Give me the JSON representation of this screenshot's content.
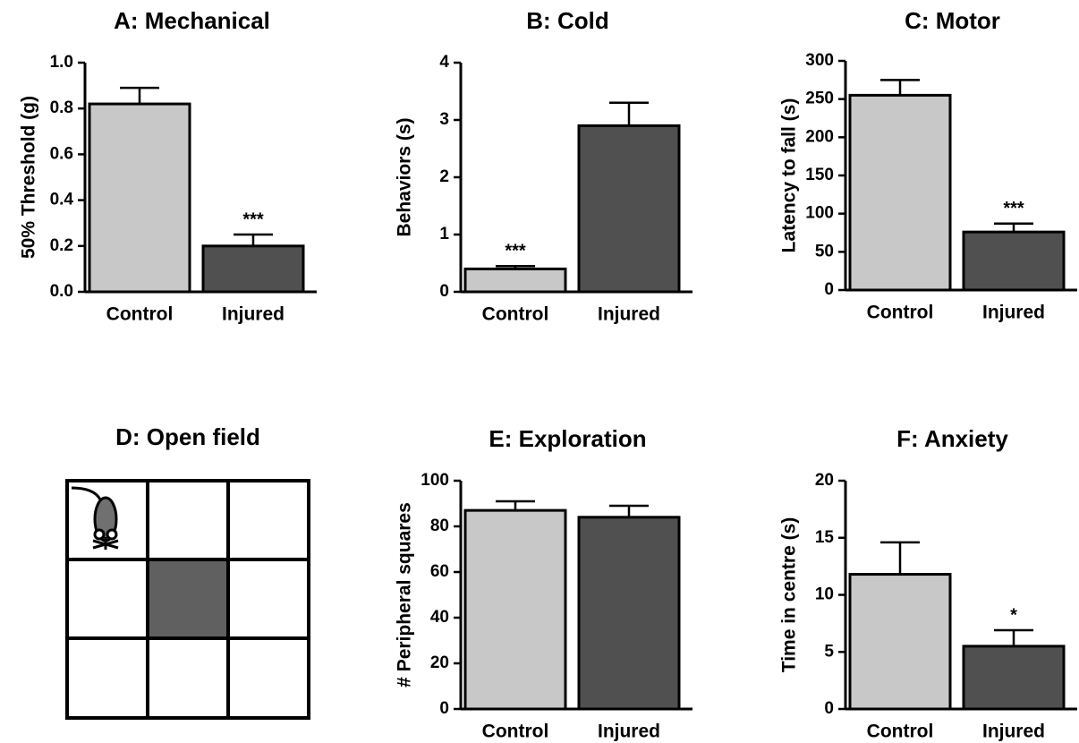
{
  "chart_data": [
    {
      "type": "bar",
      "title": "A: Mechanical",
      "y_label": "50% Threshold (g)",
      "categories": [
        "Control",
        "Injured"
      ],
      "values": [
        0.82,
        0.2
      ],
      "errors": [
        0.07,
        0.05
      ],
      "annotations": [
        null,
        "***"
      ],
      "colors": [
        "#c8c8c8",
        "#505050"
      ],
      "ylim": [
        0,
        1
      ],
      "yticks": [
        {
          "value": 0,
          "label": "0.0"
        },
        0.2,
        0.4,
        0.6,
        0.8,
        {
          "value": 1,
          "label": "1.0"
        }
      ]
    },
    {
      "type": "bar",
      "title": "B: Cold",
      "y_label": "Behaviors (s)",
      "categories": [
        "Control",
        "Injured"
      ],
      "values": [
        0.4,
        2.9
      ],
      "errors": [
        0.05,
        0.4
      ],
      "annotations": [
        "***",
        null
      ],
      "colors": [
        "#c8c8c8",
        "#505050"
      ],
      "ylim": [
        0,
        4
      ],
      "yticks": [
        0,
        1,
        2,
        3,
        4
      ]
    },
    {
      "type": "bar",
      "title": "C: Motor",
      "y_label": "Latency to fall (s)",
      "categories": [
        "Control",
        "Injured"
      ],
      "values": [
        255,
        76
      ],
      "errors": [
        20,
        11
      ],
      "annotations": [
        null,
        "***"
      ],
      "colors": [
        "#c8c8c8",
        "#505050"
      ],
      "ylim": [
        0,
        300
      ],
      "yticks": [
        0,
        50,
        100,
        150,
        200,
        250,
        300
      ]
    },
    {
      "type": "diagram",
      "title": "D: Open field"
    },
    {
      "type": "bar",
      "title": "E: Exploration",
      "y_label": "# Peripheral squares",
      "categories": [
        "Control",
        "Injured"
      ],
      "values": [
        87,
        84
      ],
      "errors": [
        4,
        5
      ],
      "annotations": [
        null,
        null
      ],
      "colors": [
        "#c8c8c8",
        "#505050"
      ],
      "ylim": [
        0,
        100
      ],
      "yticks": [
        0,
        20,
        40,
        60,
        80,
        100
      ]
    },
    {
      "type": "bar",
      "title": "F: Anxiety",
      "y_label": "Time in centre (s)",
      "categories": [
        "Control",
        "Injured"
      ],
      "values": [
        11.8,
        5.5
      ],
      "errors": [
        2.8,
        1.4
      ],
      "annotations": [
        null,
        "*"
      ],
      "colors": [
        "#c8c8c8",
        "#505050"
      ],
      "ylim": [
        0,
        20
      ],
      "yticks": [
        0,
        5,
        10,
        15,
        20
      ]
    }
  ]
}
